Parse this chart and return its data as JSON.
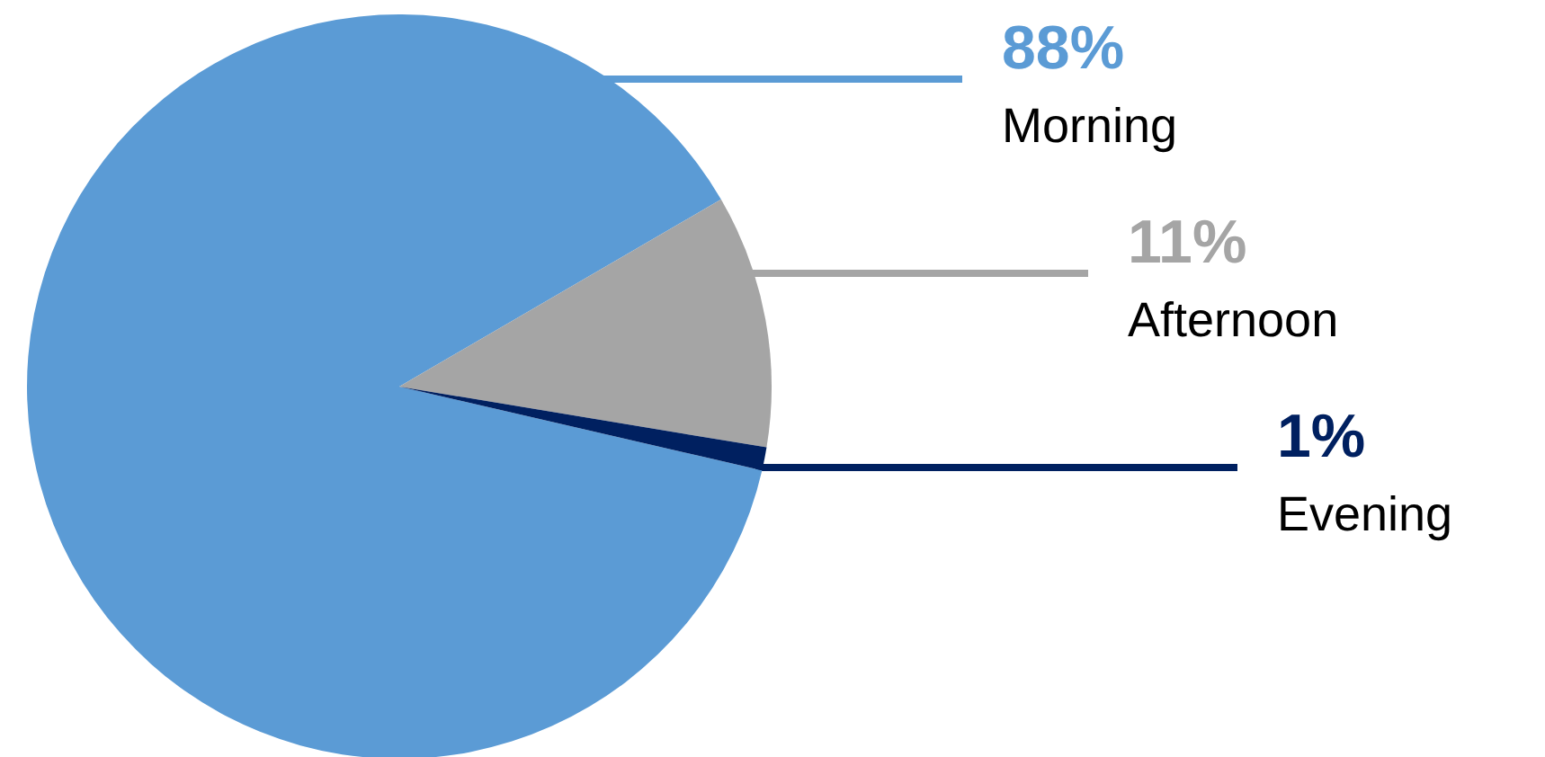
{
  "chart_data": {
    "type": "pie",
    "categories": [
      "Morning",
      "Afternoon",
      "Evening"
    ],
    "values": [
      88,
      11,
      1
    ],
    "value_labels": [
      "88%",
      "11%",
      "1%"
    ],
    "colors": [
      "#5b9bd5",
      "#a5a5a5",
      "#002060"
    ],
    "legend": false
  }
}
